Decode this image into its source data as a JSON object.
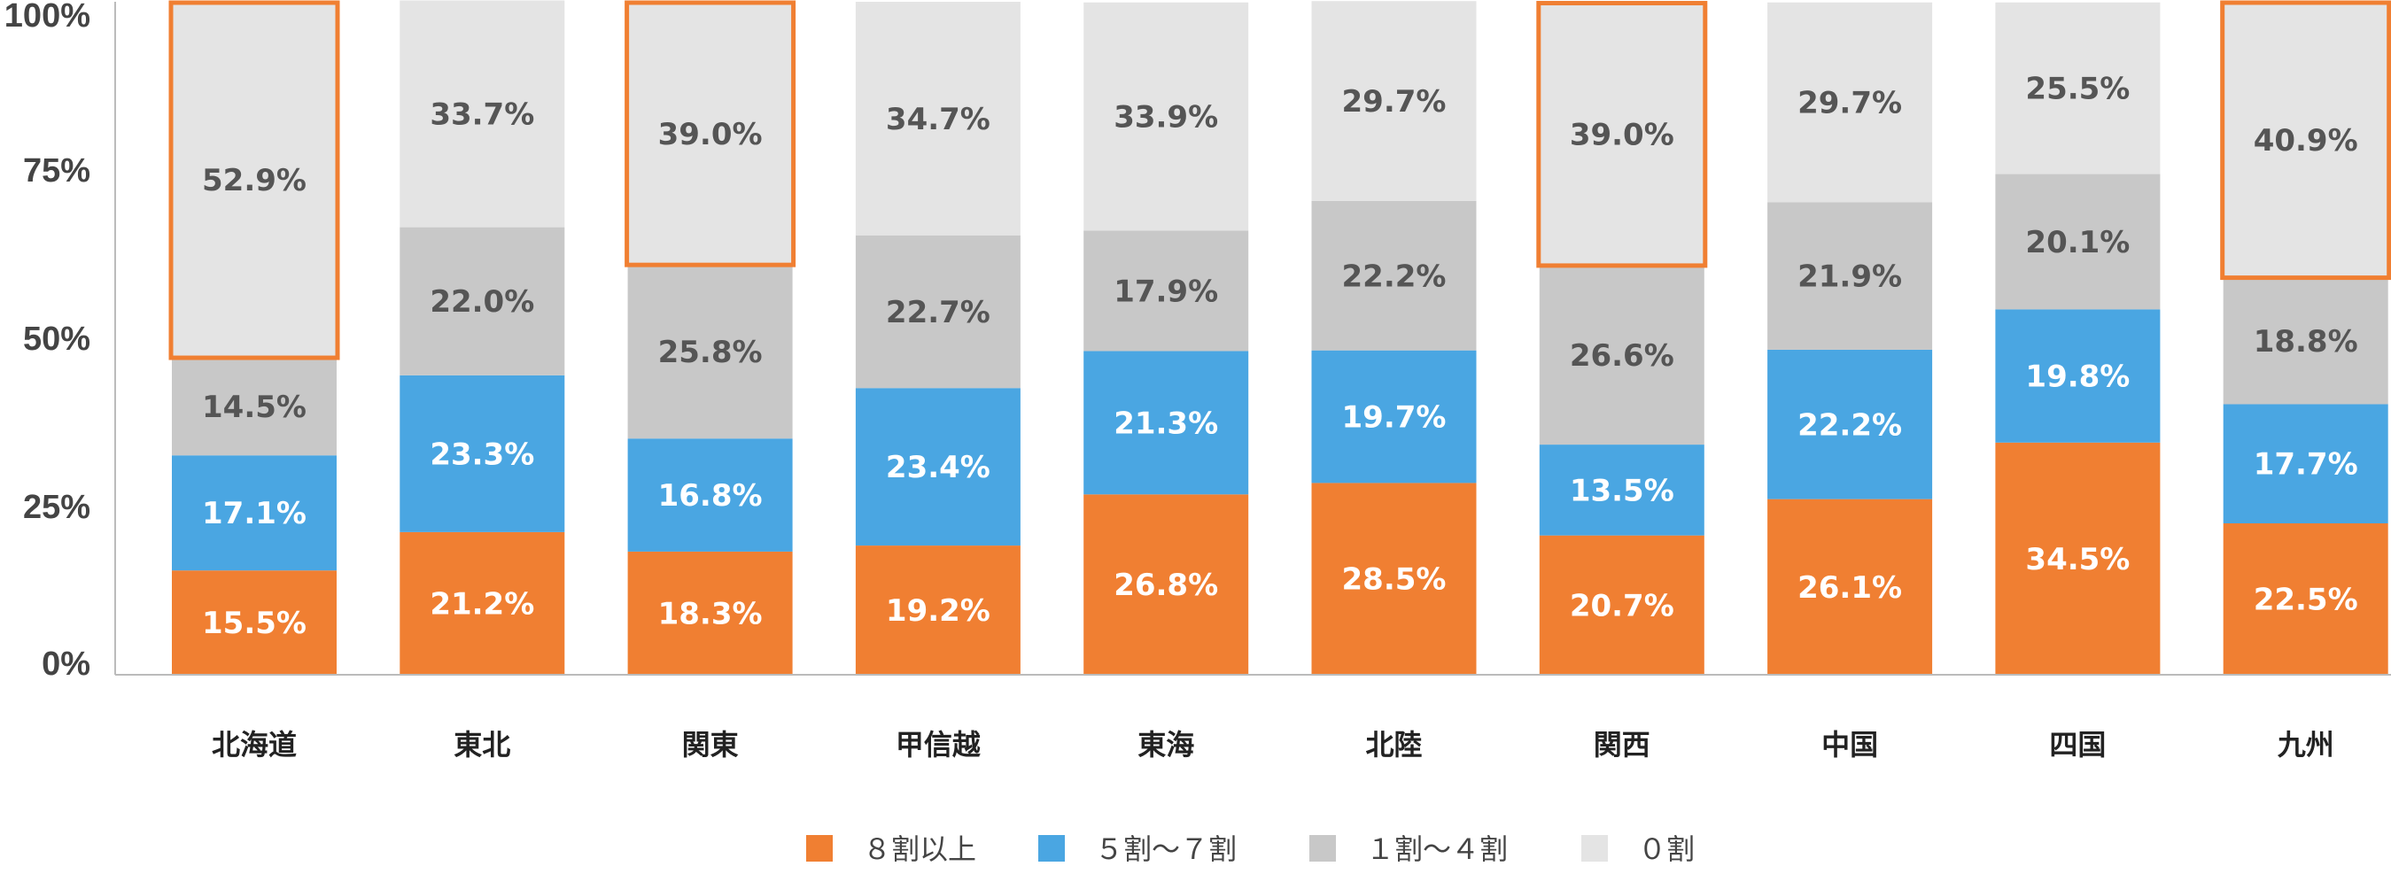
{
  "chart_data": {
    "type": "bar",
    "stacked": true,
    "percent": true,
    "categories": [
      "北海道",
      "東北",
      "関東",
      "甲信越",
      "東海",
      "北陸",
      "関西",
      "中国",
      "四国",
      "九州"
    ],
    "series": [
      {
        "name": "８割以上",
        "color": "#F07F32",
        "values": [
          15.5,
          21.2,
          18.3,
          19.2,
          26.8,
          28.5,
          20.7,
          26.1,
          34.5,
          22.5
        ]
      },
      {
        "name": "５割〜７割",
        "color": "#4AA6E2",
        "values": [
          17.1,
          23.3,
          16.8,
          23.4,
          21.3,
          19.7,
          13.5,
          22.2,
          19.8,
          17.7
        ]
      },
      {
        "name": "１割〜４割",
        "color": "#C8C8C8",
        "values": [
          14.5,
          22.0,
          25.8,
          22.7,
          17.9,
          22.2,
          26.6,
          21.9,
          20.1,
          18.8
        ]
      },
      {
        "name": "０割",
        "color": "#E4E4E4",
        "values": [
          52.9,
          33.7,
          39.0,
          34.7,
          33.9,
          29.7,
          39.0,
          29.7,
          25.5,
          40.9
        ]
      }
    ],
    "data_labels": [
      [
        "15.5%",
        "21.2%",
        "18.3%",
        "19.2%",
        "26.8%",
        "28.5%",
        "20.7%",
        "26.1%",
        "34.5%",
        "22.5%"
      ],
      [
        "17.1%",
        "23.3%",
        "16.8%",
        "23.4%",
        "21.3%",
        "19.7%",
        "13.5%",
        "22.2%",
        "19.8%",
        "17.7%"
      ],
      [
        "14.5%",
        "22.0%",
        "25.8%",
        "22.7%",
        "17.9%",
        "22.2%",
        "26.6%",
        "21.9%",
        "20.1%",
        "18.8%"
      ],
      [
        "52.9%",
        "33.7%",
        "39.0%",
        "34.7%",
        "33.9%",
        "29.7%",
        "39.0%",
        "29.7%",
        "25.5%",
        "40.9%"
      ]
    ],
    "label_colors": [
      "#ffffff",
      "#ffffff",
      "#555555",
      "#555555"
    ],
    "y_ticks": [
      "0%",
      "25%",
      "50%",
      "75%",
      "100%"
    ],
    "ylim": [
      0,
      100
    ],
    "highlighted_series": "０割",
    "highlighted_categories": [
      "北海道",
      "関東",
      "関西",
      "九州"
    ],
    "highlight_color": "#F07F32",
    "axis_color": "#BBBBBB",
    "grid": false,
    "legend_position": "bottom"
  }
}
